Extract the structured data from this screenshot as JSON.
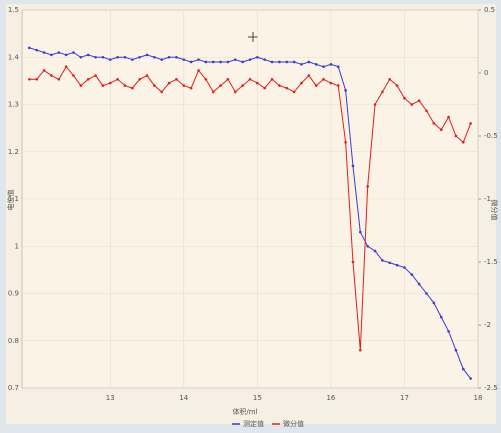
{
  "chart_data": {
    "type": "line",
    "x_label": "体积/ml",
    "y_label": "电位值",
    "y2_label": "微分值",
    "x": [
      11.9,
      12.0,
      12.1,
      12.2,
      12.3,
      12.4,
      12.5,
      12.6,
      12.7,
      12.8,
      12.9,
      13.0,
      13.1,
      13.2,
      13.3,
      13.4,
      13.5,
      13.6,
      13.7,
      13.8,
      13.9,
      14.0,
      14.1,
      14.2,
      14.3,
      14.4,
      14.5,
      14.6,
      14.7,
      14.8,
      14.9,
      15.0,
      15.1,
      15.2,
      15.3,
      15.4,
      15.5,
      15.6,
      15.7,
      15.8,
      15.9,
      16.0,
      16.1,
      16.2,
      16.3,
      16.4,
      16.5,
      16.6,
      16.7,
      16.8,
      16.9,
      17.0,
      17.1,
      17.2,
      17.3,
      17.4,
      17.5,
      17.6,
      17.7,
      17.8,
      17.9
    ],
    "series": [
      {
        "name": "测定值",
        "color": "#3b3bd6",
        "axis": "y",
        "values": [
          1.42,
          1.415,
          1.41,
          1.405,
          1.41,
          1.405,
          1.41,
          1.4,
          1.405,
          1.4,
          1.4,
          1.395,
          1.4,
          1.4,
          1.395,
          1.4,
          1.405,
          1.4,
          1.395,
          1.4,
          1.4,
          1.395,
          1.39,
          1.395,
          1.39,
          1.39,
          1.39,
          1.39,
          1.395,
          1.39,
          1.395,
          1.4,
          1.395,
          1.39,
          1.39,
          1.39,
          1.39,
          1.385,
          1.39,
          1.385,
          1.38,
          1.385,
          1.38,
          1.33,
          1.17,
          1.03,
          1.0,
          0.99,
          0.97,
          0.965,
          0.96,
          0.955,
          0.94,
          0.92,
          0.9,
          0.88,
          0.85,
          0.82,
          0.78,
          0.74,
          0.72
        ]
      },
      {
        "name": "微分值",
        "color": "#e02020",
        "axis": "y2",
        "values": [
          -0.05,
          -0.05,
          0.02,
          -0.02,
          -0.05,
          0.05,
          -0.02,
          -0.1,
          -0.05,
          -0.02,
          -0.1,
          -0.08,
          -0.05,
          -0.1,
          -0.12,
          -0.05,
          -0.02,
          -0.1,
          -0.15,
          -0.08,
          -0.05,
          -0.1,
          -0.12,
          0.02,
          -0.05,
          -0.15,
          -0.1,
          -0.05,
          -0.15,
          -0.1,
          -0.05,
          -0.08,
          -0.12,
          -0.05,
          -0.1,
          -0.12,
          -0.15,
          -0.08,
          -0.02,
          -0.1,
          -0.05,
          -0.08,
          -0.1,
          -0.55,
          -1.5,
          -2.2,
          -0.9,
          -0.25,
          -0.15,
          -0.05,
          -0.1,
          -0.2,
          -0.25,
          -0.22,
          -0.3,
          -0.4,
          -0.45,
          -0.35,
          -0.5,
          -0.55,
          -0.4
        ]
      }
    ],
    "xlim": [
      11.8,
      18
    ],
    "xticks": [
      13,
      14,
      15,
      16,
      17,
      18
    ],
    "ylim": [
      0.7,
      1.5
    ],
    "yticks": [
      0.7,
      0.8,
      0.9,
      1,
      1.1,
      1.2,
      1.3,
      1.4,
      1.5
    ],
    "y2lim": [
      -2.5,
      0.5
    ],
    "y2ticks": [
      -2.5,
      -2,
      -1.5,
      -1,
      -0.5,
      0,
      0.5
    ],
    "grid": true,
    "legend": "bottom"
  }
}
